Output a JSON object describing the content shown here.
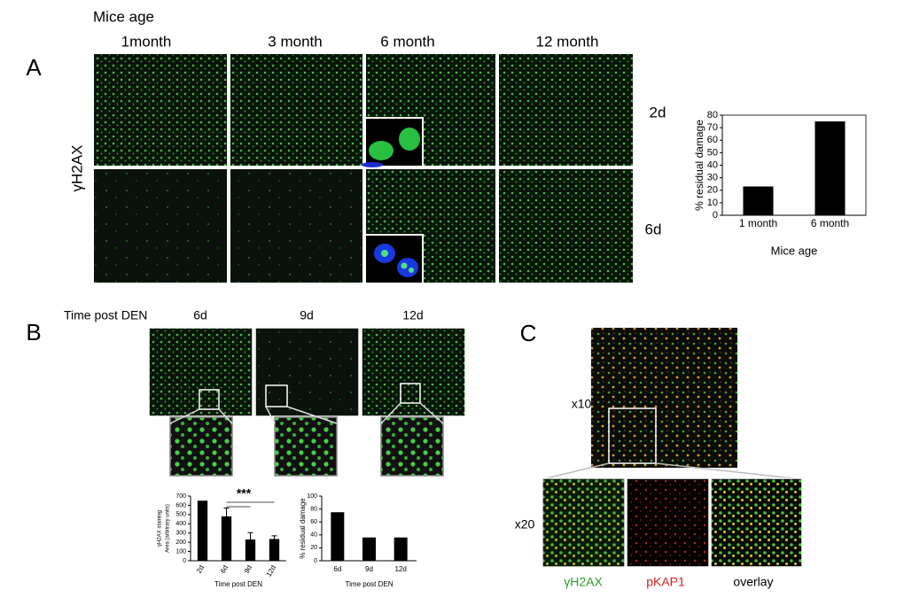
{
  "panels": {
    "a": {
      "label": "A",
      "header": "Mice age",
      "columns": [
        "1month",
        "3 month",
        "6 month",
        "12 month"
      ],
      "row_label": "γH2AX",
      "rows": [
        "2d",
        "6d"
      ]
    },
    "b": {
      "label": "B",
      "header": "Time post DEN",
      "columns": [
        "6d",
        "9d",
        "12d"
      ]
    },
    "c": {
      "label": "C",
      "zoom_labels": [
        "x10",
        "x20"
      ],
      "channels": [
        "γH2AX",
        "pKAP1",
        "overlay"
      ]
    }
  },
  "chart_data": [
    {
      "type": "bar",
      "ylabel": "% residual damage",
      "xlabel": "Mice age",
      "categories": [
        "1 month",
        "6 month"
      ],
      "values": [
        23,
        75
      ],
      "color": "#000000",
      "ylim": [
        0,
        80
      ],
      "yticks": [
        0,
        10,
        20,
        30,
        40,
        50,
        60,
        70,
        80
      ]
    },
    {
      "type": "bar",
      "ylabel": [
        "γH2AX staining",
        "Area (arbitrary units)"
      ],
      "xlabel": "Time post DEN",
      "categories": [
        "2d",
        "6d",
        "9d",
        "12d"
      ],
      "values": [
        650,
        480,
        230,
        235
      ],
      "errors": [
        null,
        90,
        75,
        35
      ],
      "color": "#000000",
      "ylim": [
        0,
        700
      ],
      "yticks": [
        0,
        100,
        200,
        300,
        400,
        500,
        600,
        700
      ],
      "annotation": "***"
    },
    {
      "type": "bar",
      "ylabel": "% residual damage",
      "xlabel": "Time post DEN",
      "categories": [
        "6d",
        "9d",
        "12d"
      ],
      "values": [
        75,
        36,
        36
      ],
      "color": "#000000",
      "ylim": [
        0,
        100
      ],
      "yticks": [
        0,
        20,
        40,
        60,
        80,
        100
      ]
    }
  ]
}
